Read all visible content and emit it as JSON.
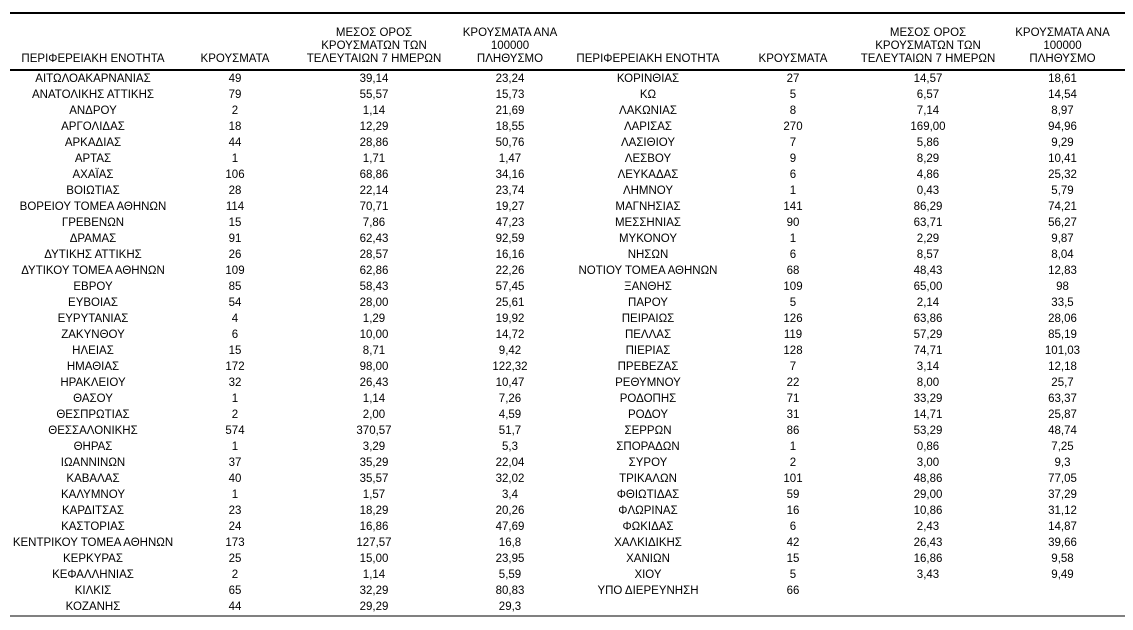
{
  "table": {
    "headers": [
      "ΠΕΡΙΦΕΡΕΙΑΚΗ ΕΝΟΤΗΤΑ",
      "ΚΡΟΥΣΜΑΤΑ",
      "ΜΕΣΟΣ ΟΡΟΣ\nΚΡΟΥΣΜΑΤΩΝ ΤΩΝ\nΤΕΛΕΥΤΑΙΩΝ 7 ΗΜΕΡΩΝ",
      "ΚΡΟΥΣΜΑΤΑ ΑΝΑ 100000\nΠΛΗΘΥΣΜΟ"
    ],
    "left_rows": [
      [
        "ΑΙΤΩΛΟΑΚΑΡΝΑΝΙΑΣ",
        "49",
        "39,14",
        "23,24"
      ],
      [
        "ΑΝΑΤΟΛΙΚΗΣ ΑΤΤΙΚΗΣ",
        "79",
        "55,57",
        "15,73"
      ],
      [
        "ΑΝΔΡΟΥ",
        "2",
        "1,14",
        "21,69"
      ],
      [
        "ΑΡΓΟΛΙΔΑΣ",
        "18",
        "12,29",
        "18,55"
      ],
      [
        "ΑΡΚΑΔΙΑΣ",
        "44",
        "28,86",
        "50,76"
      ],
      [
        "ΑΡΤΑΣ",
        "1",
        "1,71",
        "1,47"
      ],
      [
        "ΑΧΑΪΑΣ",
        "106",
        "68,86",
        "34,16"
      ],
      [
        "ΒΟΙΩΤΙΑΣ",
        "28",
        "22,14",
        "23,74"
      ],
      [
        "ΒΟΡΕΙΟΥ ΤΟΜΕΑ ΑΘΗΝΩΝ",
        "114",
        "70,71",
        "19,27"
      ],
      [
        "ΓΡΕΒΕΝΩΝ",
        "15",
        "7,86",
        "47,23"
      ],
      [
        "ΔΡΑΜΑΣ",
        "91",
        "62,43",
        "92,59"
      ],
      [
        "ΔΥΤΙΚΗΣ ΑΤΤΙΚΗΣ",
        "26",
        "28,57",
        "16,16"
      ],
      [
        "ΔΥΤΙΚΟΥ ΤΟΜΕΑ ΑΘΗΝΩΝ",
        "109",
        "62,86",
        "22,26"
      ],
      [
        "ΕΒΡΟΥ",
        "85",
        "58,43",
        "57,45"
      ],
      [
        "ΕΥΒΟΙΑΣ",
        "54",
        "28,00",
        "25,61"
      ],
      [
        "ΕΥΡΥΤΑΝΙΑΣ",
        "4",
        "1,29",
        "19,92"
      ],
      [
        "ΖΑΚΥΝΘΟΥ",
        "6",
        "10,00",
        "14,72"
      ],
      [
        "ΗΛΕΙΑΣ",
        "15",
        "8,71",
        "9,42"
      ],
      [
        "ΗΜΑΘΙΑΣ",
        "172",
        "98,00",
        "122,32"
      ],
      [
        "ΗΡΑΚΛΕΙΟΥ",
        "32",
        "26,43",
        "10,47"
      ],
      [
        "ΘΑΣΟΥ",
        "1",
        "1,14",
        "7,26"
      ],
      [
        "ΘΕΣΠΡΩΤΙΑΣ",
        "2",
        "2,00",
        "4,59"
      ],
      [
        "ΘΕΣΣΑΛΟΝΙΚΗΣ",
        "574",
        "370,57",
        "51,7"
      ],
      [
        "ΘΗΡΑΣ",
        "1",
        "3,29",
        "5,3"
      ],
      [
        "ΙΩΑΝΝΙΝΩΝ",
        "37",
        "35,29",
        "22,04"
      ],
      [
        "ΚΑΒΑΛΑΣ",
        "40",
        "35,57",
        "32,02"
      ],
      [
        "ΚΑΛΥΜΝΟΥ",
        "1",
        "1,57",
        "3,4"
      ],
      [
        "ΚΑΡΔΙΤΣΑΣ",
        "23",
        "18,29",
        "20,26"
      ],
      [
        "ΚΑΣΤΟΡΙΑΣ",
        "24",
        "16,86",
        "47,69"
      ],
      [
        "ΚΕΝΤΡΙΚΟΥ ΤΟΜΕΑ ΑΘΗΝΩΝ",
        "173",
        "127,57",
        "16,8"
      ],
      [
        "ΚΕΡΚΥΡΑΣ",
        "25",
        "15,00",
        "23,95"
      ],
      [
        "ΚΕΦΑΛΛΗΝΙΑΣ",
        "2",
        "1,14",
        "5,59"
      ],
      [
        "ΚΙΛΚΙΣ",
        "65",
        "32,29",
        "80,83"
      ],
      [
        "ΚΟΖΑΝΗΣ",
        "44",
        "29,29",
        "29,3"
      ]
    ],
    "right_rows": [
      [
        "ΚΟΡΙΝΘΙΑΣ",
        "27",
        "14,57",
        "18,61"
      ],
      [
        "ΚΩ",
        "5",
        "6,57",
        "14,54"
      ],
      [
        "ΛΑΚΩΝΙΑΣ",
        "8",
        "7,14",
        "8,97"
      ],
      [
        "ΛΑΡΙΣΑΣ",
        "270",
        "169,00",
        "94,96"
      ],
      [
        "ΛΑΣΙΘΙΟΥ",
        "7",
        "5,86",
        "9,29"
      ],
      [
        "ΛΕΣΒΟΥ",
        "9",
        "8,29",
        "10,41"
      ],
      [
        "ΛΕΥΚΑΔΑΣ",
        "6",
        "4,86",
        "25,32"
      ],
      [
        "ΛΗΜΝΟΥ",
        "1",
        "0,43",
        "5,79"
      ],
      [
        "ΜΑΓΝΗΣΙΑΣ",
        "141",
        "86,29",
        "74,21"
      ],
      [
        "ΜΕΣΣΗΝΙΑΣ",
        "90",
        "63,71",
        "56,27"
      ],
      [
        "ΜΥΚΟΝΟΥ",
        "1",
        "2,29",
        "9,87"
      ],
      [
        "ΝΗΣΩΝ",
        "6",
        "8,57",
        "8,04"
      ],
      [
        "ΝΟΤΙΟΥ ΤΟΜΕΑ ΑΘΗΝΩΝ",
        "68",
        "48,43",
        "12,83"
      ],
      [
        "ΞΑΝΘΗΣ",
        "109",
        "65,00",
        "98"
      ],
      [
        "ΠΑΡΟΥ",
        "5",
        "2,14",
        "33,5"
      ],
      [
        "ΠΕΙΡΑΙΩΣ",
        "126",
        "63,86",
        "28,06"
      ],
      [
        "ΠΕΛΛΑΣ",
        "119",
        "57,29",
        "85,19"
      ],
      [
        "ΠΙΕΡΙΑΣ",
        "128",
        "74,71",
        "101,03"
      ],
      [
        "ΠΡΕΒΕΖΑΣ",
        "7",
        "3,14",
        "12,18"
      ],
      [
        "ΡΕΘΥΜΝΟΥ",
        "22",
        "8,00",
        "25,7"
      ],
      [
        "ΡΟΔΟΠΗΣ",
        "71",
        "33,29",
        "63,37"
      ],
      [
        "ΡΟΔΟΥ",
        "31",
        "14,71",
        "25,87"
      ],
      [
        "ΣΕΡΡΩΝ",
        "86",
        "53,29",
        "48,74"
      ],
      [
        "ΣΠΟΡΑΔΩΝ",
        "1",
        "0,86",
        "7,25"
      ],
      [
        "ΣΥΡΟΥ",
        "2",
        "3,00",
        "9,3"
      ],
      [
        "ΤΡΙΚΑΛΩΝ",
        "101",
        "48,86",
        "77,05"
      ],
      [
        "ΦΘΙΩΤΙΔΑΣ",
        "59",
        "29,00",
        "37,29"
      ],
      [
        "ΦΛΩΡΙΝΑΣ",
        "16",
        "10,86",
        "31,12"
      ],
      [
        "ΦΩΚΙΔΑΣ",
        "6",
        "2,43",
        "14,87"
      ],
      [
        "ΧΑΛΚΙΔΙΚΗΣ",
        "42",
        "26,43",
        "39,66"
      ],
      [
        "ΧΑΝΙΩΝ",
        "15",
        "16,86",
        "9,58"
      ],
      [
        "ΧΙΟΥ",
        "5",
        "3,43",
        "9,49"
      ],
      [
        "ΥΠΟ ΔΙΕΡΕΥΝΗΣΗ",
        "66",
        "",
        ""
      ]
    ],
    "colors": {
      "text": "#000000",
      "top_border": "#000000",
      "header_border": "#000000",
      "bottom_border": "#808080"
    }
  }
}
